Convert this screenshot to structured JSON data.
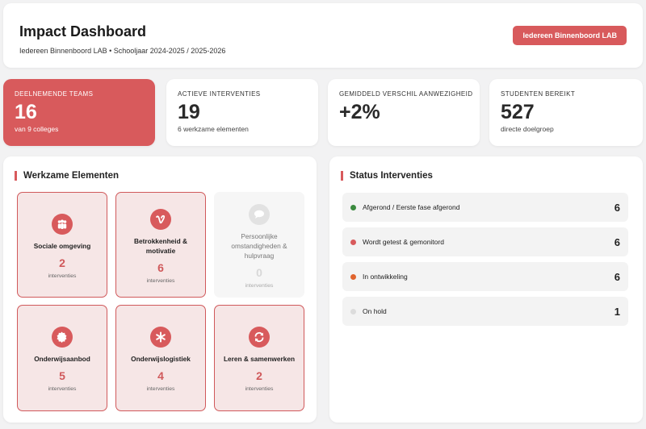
{
  "header": {
    "title": "Impact Dashboard",
    "subtitle": "Iedereen Binnenboord LAB • Schooljaar 2024-2025 / 2025-2026",
    "button_label": "Iedereen Binnenboord LAB"
  },
  "stats": [
    {
      "label": "DEELNEMENDE TEAMS",
      "value": "16",
      "sub": "van 9 colleges",
      "highlight": true
    },
    {
      "label": "ACTIEVE INTERVENTIES",
      "value": "19",
      "sub": "6 werkzame elementen",
      "highlight": false
    },
    {
      "label": "GEMIDDELD VERSCHIL AANWEZIGHEID",
      "value": "+2%",
      "sub": "",
      "highlight": false
    },
    {
      "label": "STUDENTEN BEREIKT",
      "value": "527",
      "sub": "directe doelgroep",
      "highlight": false
    }
  ],
  "elements": {
    "title": "Werkzame Elementen",
    "items": [
      {
        "name": "Sociale omgeving",
        "count": "2",
        "unit": "interventies",
        "icon": "people-icon",
        "active": true
      },
      {
        "name": "Betrokkenheid & motivatie",
        "count": "6",
        "unit": "interventies",
        "icon": "vimeo-v-icon",
        "active": true
      },
      {
        "name": "Persoonlijke omstandigheden & hulpvraag",
        "count": "0",
        "unit": "interventies",
        "icon": "chat-bubble-icon",
        "active": false
      },
      {
        "name": "Onderwijsaanbod",
        "count": "5",
        "unit": "interventies",
        "icon": "badge-icon",
        "active": true
      },
      {
        "name": "Onderwijslogistiek",
        "count": "4",
        "unit": "interventies",
        "icon": "asterisk-icon",
        "active": true
      },
      {
        "name": "Leren & samenwerken",
        "count": "2",
        "unit": "interventies",
        "icon": "sync-icon",
        "active": true
      }
    ]
  },
  "status": {
    "title": "Status Interventies",
    "rows": [
      {
        "label": "Afgerond / Eerste fase afgerond",
        "count": "6",
        "color": "#3b8a3e"
      },
      {
        "label": "Wordt getest & gemonitord",
        "count": "6",
        "color": "#d85a5c"
      },
      {
        "label": "In ontwikkeling",
        "count": "6",
        "color": "#e0642e"
      },
      {
        "label": "On hold",
        "count": "1",
        "color": "#dcdcdc"
      }
    ]
  },
  "colors": {
    "accent": "#d85a5c",
    "background": "#f2f2f3",
    "card": "#ffffff"
  }
}
